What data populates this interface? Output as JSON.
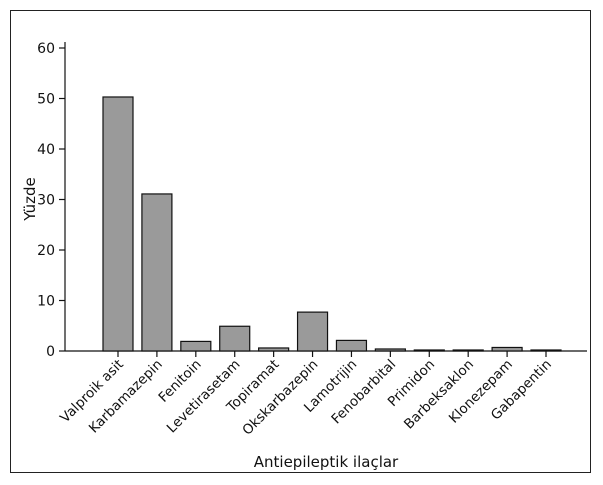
{
  "chart_data": {
    "type": "bar",
    "title": "",
    "xlabel": "Antiepileptik ilaçlar",
    "ylabel": "Yüzde",
    "ylim": [
      0,
      60
    ],
    "yticks": [
      0,
      10,
      20,
      30,
      40,
      50,
      60
    ],
    "grid": false,
    "categories": [
      "Valproik asit",
      "Karbamazepin",
      "Fenitoin",
      "Levetirasetam",
      "Topiramat",
      "Okskarbazepin",
      "Lamotrijin",
      "Fenobarbital",
      "Primidon",
      "Barbeksaklon",
      "Klonezepam",
      "Gabapentin"
    ],
    "values": [
      50.3,
      31.1,
      1.9,
      4.9,
      0.6,
      7.7,
      2.1,
      0.4,
      0.2,
      0.2,
      0.7,
      0.2
    ],
    "bar_color": "#9a9a9a",
    "bar_edge_color": "#111111"
  }
}
